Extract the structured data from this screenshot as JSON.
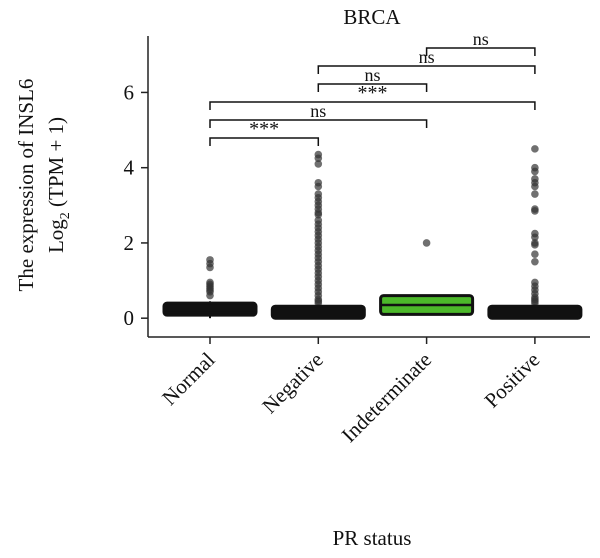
{
  "chart_data": {
    "type": "box",
    "title": "BRCA",
    "xlabel": "PR status",
    "ylabel_line1": "The expression of INSL6",
    "ylabel_line2_prefix": "Log",
    "ylabel_line2_subscript": "2",
    "ylabel_line2_suffix": " (TPM + 1)",
    "ylim": [
      -0.5,
      7.5
    ],
    "yticks": [
      0,
      2,
      4,
      6
    ],
    "ytick_labels": [
      "0",
      "2",
      "4",
      "6"
    ],
    "categories": [
      "Normal",
      "Negative",
      "Indeterminate",
      "Positive"
    ],
    "boxes": [
      {
        "category": "Normal",
        "q1": 0.08,
        "median": 0.15,
        "q3": 0.26,
        "whisker_low": 0.0,
        "whisker_high": 0.45,
        "color": "#111111",
        "outliers": [
          1.55,
          1.45,
          1.35,
          0.95,
          0.9,
          0.85,
          0.8,
          0.75,
          0.7,
          0.6
        ]
      },
      {
        "category": "Negative",
        "q1": 0.0,
        "median": 0.05,
        "q3": 0.15,
        "whisker_low": 0.0,
        "whisker_high": 0.35,
        "color": "#111111",
        "outliers": [
          4.35,
          4.25,
          4.1,
          3.6,
          3.5,
          3.3,
          3.2,
          3.1,
          3.0,
          2.9,
          2.8,
          2.75,
          2.6,
          2.5,
          2.4,
          2.3,
          2.2,
          2.1,
          2.0,
          1.9,
          1.8,
          1.7,
          1.6,
          1.5,
          1.4,
          1.3,
          1.2,
          1.1,
          1.0,
          0.9,
          0.8,
          0.7,
          0.6,
          0.5,
          0.45,
          0.4
        ]
      },
      {
        "category": "Indeterminate",
        "q1": 0.1,
        "median": 0.35,
        "q3": 0.6,
        "whisker_low": 0.1,
        "whisker_high": 0.6,
        "color": "#4cb82a",
        "outliers": [
          2.0
        ]
      },
      {
        "category": "Positive",
        "q1": 0.0,
        "median": 0.05,
        "q3": 0.15,
        "whisker_low": 0.0,
        "whisker_high": 0.35,
        "color": "#111111",
        "outliers": [
          4.5,
          4.0,
          3.9,
          3.7,
          3.6,
          3.5,
          3.3,
          2.9,
          2.85,
          2.25,
          2.15,
          2.0,
          1.95,
          1.7,
          1.5,
          0.95,
          0.85,
          0.75,
          0.65,
          0.55,
          0.5,
          0.45,
          0.4
        ]
      }
    ],
    "comparisons": [
      {
        "from": "Normal",
        "to": "Negative",
        "label": "***"
      },
      {
        "from": "Normal",
        "to": "Indeterminate",
        "label": "ns"
      },
      {
        "from": "Normal",
        "to": "Positive",
        "label": "***"
      },
      {
        "from": "Negative",
        "to": "Indeterminate",
        "label": "ns"
      },
      {
        "from": "Negative",
        "to": "Positive",
        "label": "ns"
      },
      {
        "from": "Indeterminate",
        "to": "Positive",
        "label": "ns"
      }
    ]
  }
}
